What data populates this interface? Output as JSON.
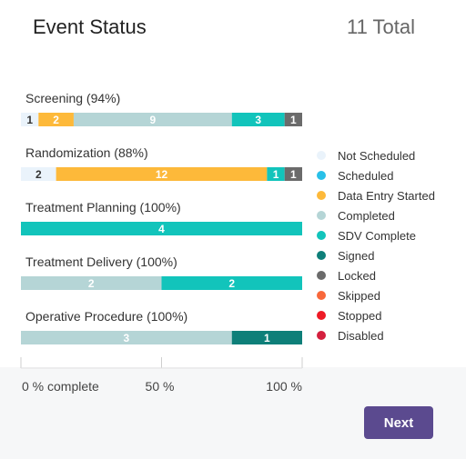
{
  "header": {
    "title": "Event Status",
    "total": "11 Total"
  },
  "chart_data": {
    "type": "bar",
    "orientation": "horizontal-stacked",
    "categories": [
      "Screening (94%)",
      "Randomization (88%)",
      "Treatment Planning (100%)",
      "Treatment Delivery (100%)",
      "Operative Procedure (100%)"
    ],
    "series": [
      {
        "name": "Not Scheduled",
        "color": "#eaf3fb",
        "values": [
          1,
          2,
          0,
          0,
          0
        ]
      },
      {
        "name": "Scheduled",
        "color": "#29c0e8",
        "values": [
          0,
          0,
          0,
          0,
          0
        ]
      },
      {
        "name": "Data Entry Started",
        "color": "#fdb93a",
        "values": [
          2,
          12,
          0,
          0,
          0
        ]
      },
      {
        "name": "Completed",
        "color": "#b5d5d6",
        "values": [
          9,
          0,
          0,
          2,
          3
        ]
      },
      {
        "name": "SDV Complete",
        "color": "#12c4bb",
        "values": [
          3,
          1,
          4,
          2,
          0
        ]
      },
      {
        "name": "Signed",
        "color": "#0e7f79",
        "values": [
          0,
          0,
          0,
          0,
          1
        ]
      },
      {
        "name": "Locked",
        "color": "#6b6b6b",
        "values": [
          1,
          1,
          0,
          0,
          0
        ]
      },
      {
        "name": "Skipped",
        "color": "#f8683b",
        "values": [
          0,
          0,
          0,
          0,
          0
        ]
      },
      {
        "name": "Stopped",
        "color": "#ee1b26",
        "values": [
          0,
          0,
          0,
          0,
          0
        ]
      },
      {
        "name": "Disabled",
        "color": "#d4203e",
        "values": [
          0,
          0,
          0,
          0,
          0
        ]
      }
    ],
    "xticks": [
      "0 % complete",
      "50 %",
      "100 %"
    ],
    "legend_position": "right",
    "grid": false
  },
  "actions": {
    "next_label": "Next"
  }
}
